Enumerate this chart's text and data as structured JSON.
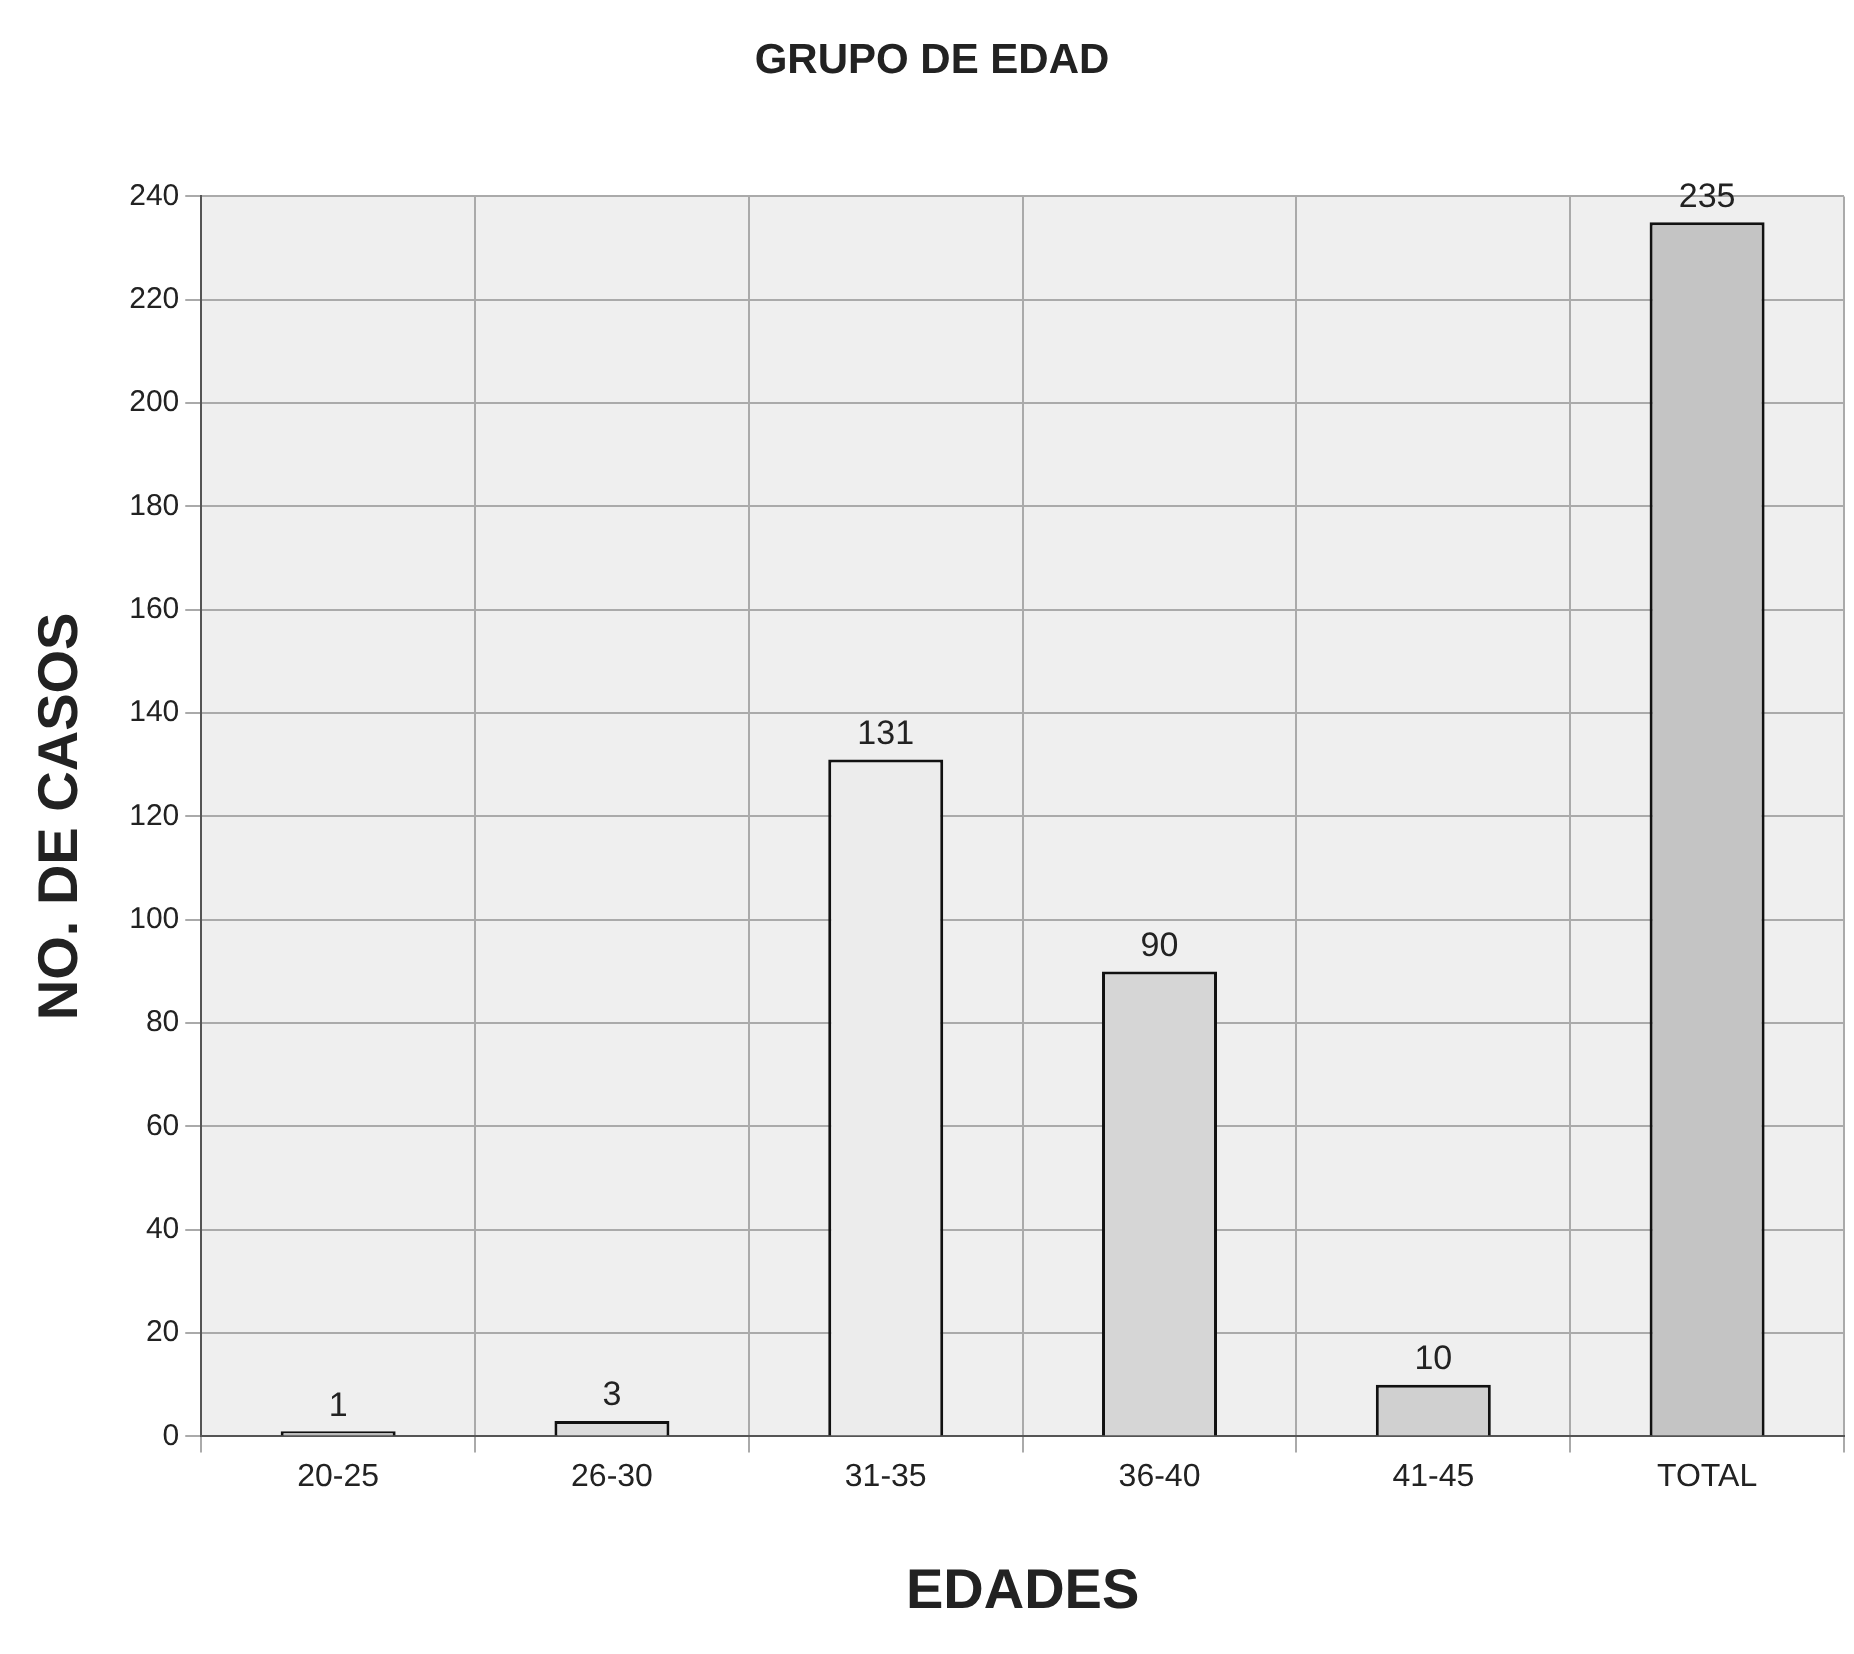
{
  "chart_data": {
    "type": "bar",
    "title": "GRUPO DE EDAD",
    "xlabel": "EDADES",
    "ylabel": "NO. DE CASOS",
    "categories": [
      "20-25",
      "26-30",
      "31-35",
      "36-40",
      "41-45",
      "TOTAL"
    ],
    "values": [
      1,
      3,
      131,
      90,
      10,
      235
    ],
    "colors": [
      "#bdbdbd",
      "#dcdcdc",
      "#ececec",
      "#d6d6d6",
      "#d0d0d0",
      "#c4c4c4"
    ],
    "ylim": [
      0,
      240
    ],
    "yticks": [
      0,
      20,
      40,
      60,
      80,
      100,
      120,
      140,
      160,
      180,
      200,
      220,
      240
    ],
    "grid": true,
    "data_labels": true
  }
}
